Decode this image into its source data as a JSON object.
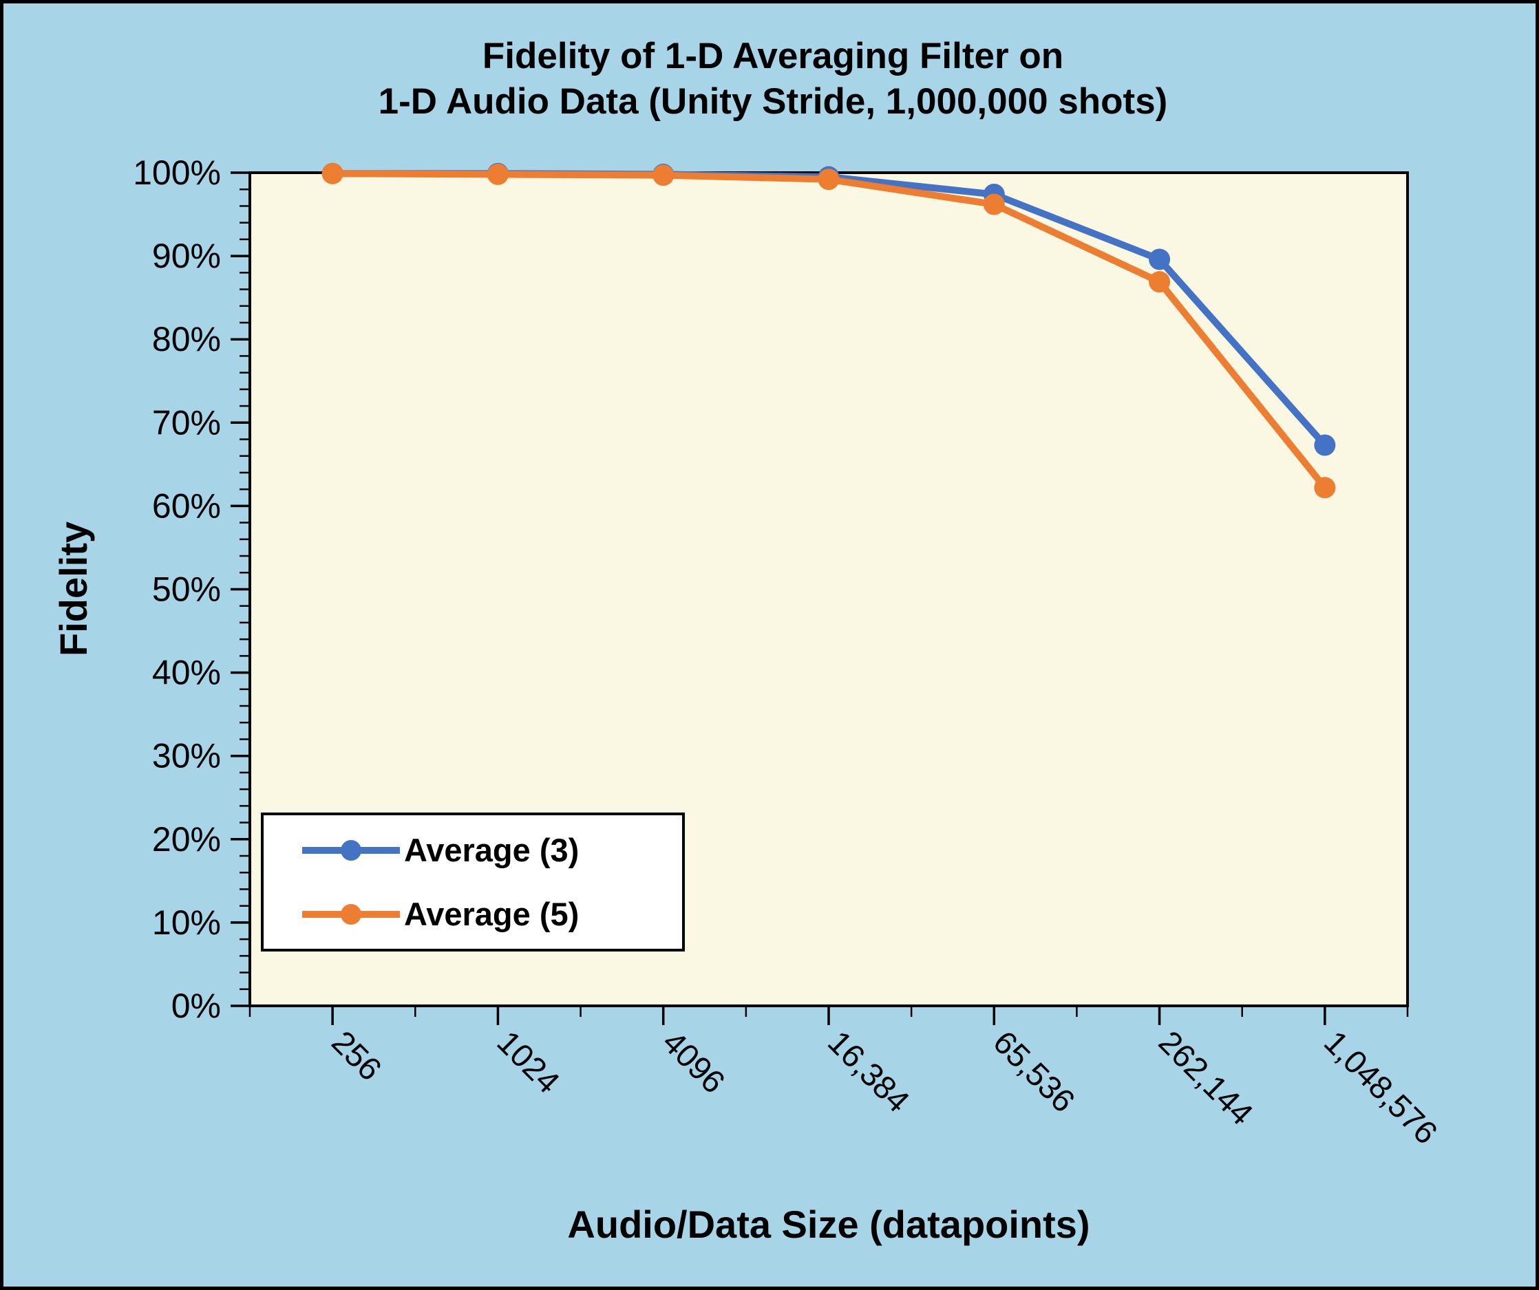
{
  "chart_data": {
    "type": "line",
    "title": "Fidelity of 1-D Averaging Filter on 1-D Audio Data (Unity Stride, 1,000,000 shots)",
    "title_line1": "Fidelity of 1-D Averaging Filter on",
    "title_line2": "1-D Audio Data (Unity Stride, 1,000,000 shots)",
    "xlabel": "Audio/Data Size (datapoints)",
    "ylabel": "Fidelity",
    "categories": [
      "256",
      "1024",
      "4096",
      "16,384",
      "65,536",
      "262,144",
      "1,048,576"
    ],
    "series": [
      {
        "name": "Average (3)",
        "color": "#4472C4",
        "values": [
          99.9,
          99.9,
          99.8,
          99.5,
          97.4,
          89.6,
          67.3
        ]
      },
      {
        "name": "Average (5)",
        "color": "#ED7D31",
        "values": [
          99.9,
          99.8,
          99.7,
          99.2,
          96.2,
          86.9,
          62.2
        ]
      }
    ],
    "ylim": [
      0,
      100
    ],
    "ytick_step": 10,
    "ytick_minor_step": 2,
    "ytick_labels": [
      "0%",
      "10%",
      "20%",
      "30%",
      "40%",
      "50%",
      "60%",
      "70%",
      "80%",
      "90%",
      "100%"
    ],
    "legend_position": "inside bottom-left",
    "grid": "off",
    "colors": {
      "background": "#a8d4e8",
      "plot_background": "#faf8e3",
      "axis": "#000000",
      "series_blue": "#4472C4",
      "series_orange": "#ED7D31"
    }
  }
}
